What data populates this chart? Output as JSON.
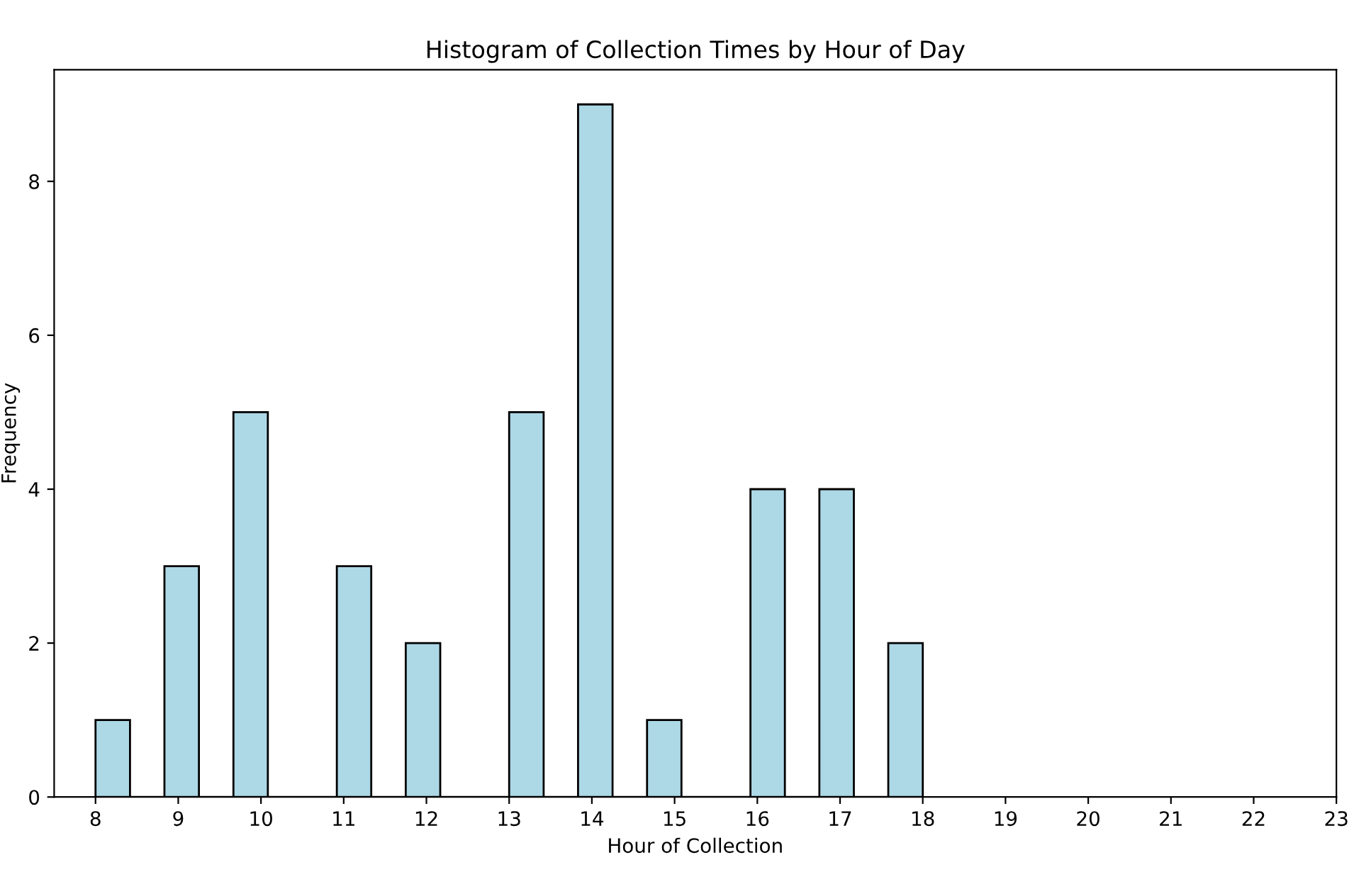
{
  "chart_data": {
    "type": "histogram",
    "title": "Histogram of Collection Times by Hour of Day",
    "xlabel": "Hour of Collection",
    "ylabel": "Frequency",
    "bins": [
      8,
      8.417,
      8.833,
      9.25,
      9.667,
      10.083,
      10.5,
      10.917,
      11.333,
      11.75,
      12.167,
      12.583,
      13,
      13.417,
      13.833,
      14.25,
      14.667,
      15.083,
      15.5,
      15.917,
      16.333,
      16.75,
      17.167,
      17.583,
      18
    ],
    "values": [
      1,
      0,
      3,
      0,
      5,
      0,
      0,
      3,
      0,
      2,
      0,
      0,
      5,
      0,
      9,
      0,
      1,
      0,
      0,
      4,
      0,
      4,
      0,
      2
    ],
    "color": "#add8e6",
    "xlim": [
      7.5,
      23
    ],
    "xticks": [
      8,
      9,
      10,
      11,
      12,
      13,
      14,
      15,
      16,
      17,
      18,
      19,
      20,
      21,
      22,
      23
    ],
    "ylim": [
      0,
      9.45
    ],
    "yticks": [
      0,
      2,
      4,
      6,
      8
    ],
    "grid": false
  }
}
